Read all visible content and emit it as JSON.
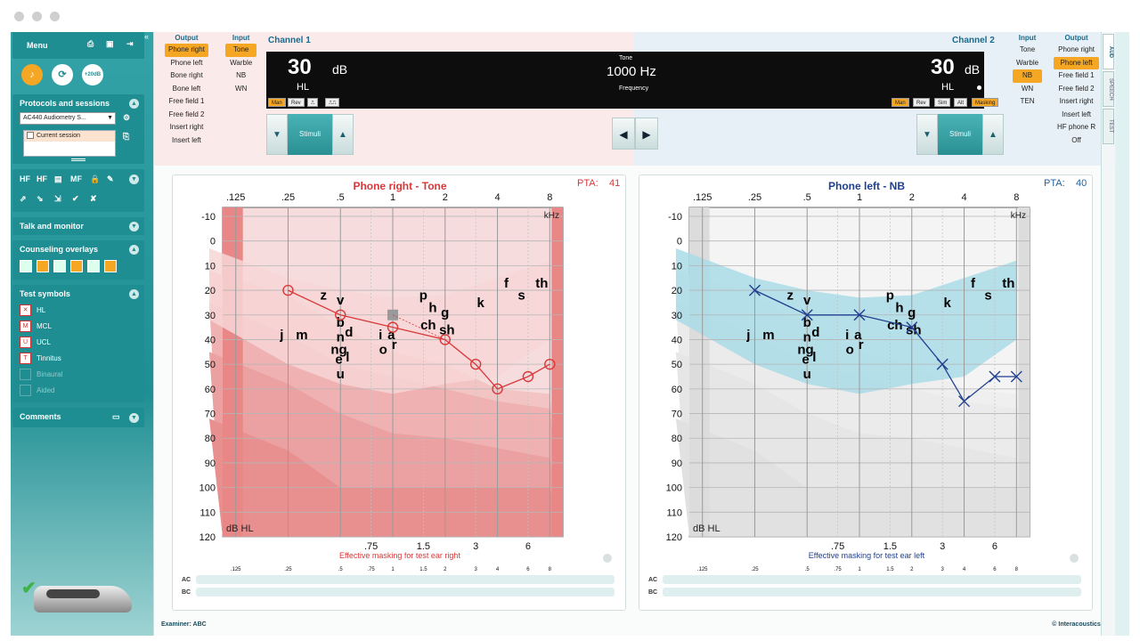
{
  "sidebar": {
    "menu_label": "Menu",
    "quick_buttons": [
      "♪",
      "⟳",
      "+20dB"
    ],
    "protocols": {
      "title": "Protocols and sessions",
      "protocol_value": "AC440 Audiometry S...",
      "current_session": "Current session"
    },
    "tools_row1": [
      "HF",
      "HF",
      "▤",
      "MF",
      "🔒",
      "✎"
    ],
    "talk_monitor": "Talk and monitor",
    "counseling": "Counseling overlays",
    "test_symbols": {
      "title": "Test symbols",
      "items": [
        "HL",
        "MCL",
        "UCL",
        "Tinnitus",
        "Binaural",
        "Aided"
      ]
    },
    "comments": "Comments"
  },
  "channel1": {
    "label": "Channel 1",
    "output_header": "Output",
    "input_header": "Input",
    "outputs": [
      "Phone right",
      "Phone left",
      "Bone right",
      "Bone left",
      "Free field 1",
      "Free field 2",
      "Insert right",
      "Insert left"
    ],
    "inputs": [
      "Tone",
      "Warble",
      "NB",
      "WN"
    ],
    "level": "30",
    "unit": "dB",
    "hl": "HL"
  },
  "channel2": {
    "label": "Channel 2",
    "input_header": "Input",
    "output_header": "Output",
    "inputs": [
      "Tone",
      "Warble",
      "NB",
      "WN",
      "TEN"
    ],
    "outputs": [
      "Phone right",
      "Phone left",
      "Free field 1",
      "Free field 2",
      "Insert right",
      "Insert left",
      "HF phone R",
      "Off"
    ],
    "level": "30",
    "unit": "dB",
    "hl": "HL"
  },
  "display": {
    "stim_type": "Tone",
    "frequency": "1000 Hz",
    "freq_label": "Frequency",
    "left_buttons": [
      "Man",
      "Rev"
    ],
    "right_buttons": [
      "Man",
      "Rev",
      "Sim",
      "Alt",
      "Masking"
    ]
  },
  "stimuli_label": "Stimuli",
  "audiogram_right": {
    "title": "Phone right - Tone",
    "pta_label": "PTA:",
    "pta_value": "41",
    "masking_label": "Effective masking for test ear right"
  },
  "audiogram_left": {
    "title": "Phone left - NB",
    "pta_label": "PTA:",
    "pta_value": "40",
    "masking_label": "Effective masking for test ear left"
  },
  "freq_top_labels": [
    ".125",
    ".25",
    ".5",
    "1",
    "2",
    "4",
    "8"
  ],
  "freq_mid_labels": [
    ".75",
    "1.5",
    "3",
    "6"
  ],
  "db_labels": [
    "-10",
    "0",
    "10",
    "20",
    "30",
    "40",
    "50",
    "60",
    "70",
    "80",
    "90",
    "100",
    "110",
    "120"
  ],
  "khz_label": "kHz",
  "dbhl_label": "dB HL",
  "ac_label": "AC",
  "bc_label": "BC",
  "bottom_freqs": [
    ".125",
    ".25",
    ".5",
    ".75",
    "1",
    "1.5",
    "2",
    "3",
    "4",
    "6",
    "8"
  ],
  "speech_sounds": [
    {
      "t": "z",
      "f": 0.4,
      "db": 22
    },
    {
      "t": "v",
      "f": 0.5,
      "db": 24
    },
    {
      "t": "p",
      "f": 1.5,
      "db": 22
    },
    {
      "t": "h",
      "f": 1.7,
      "db": 27
    },
    {
      "t": "g",
      "f": 2.0,
      "db": 29
    },
    {
      "t": "k",
      "f": 3.2,
      "db": 25
    },
    {
      "t": "f",
      "f": 4.5,
      "db": 17
    },
    {
      "t": "s",
      "f": 5.5,
      "db": 22
    },
    {
      "t": "th",
      "f": 7.2,
      "db": 17
    },
    {
      "t": "j",
      "f": 0.23,
      "db": 38
    },
    {
      "t": "m",
      "f": 0.3,
      "db": 38
    },
    {
      "t": "b",
      "f": 0.5,
      "db": 33
    },
    {
      "t": "d",
      "f": 0.56,
      "db": 37
    },
    {
      "t": "n",
      "f": 0.5,
      "db": 39
    },
    {
      "t": "ng",
      "f": 0.49,
      "db": 44
    },
    {
      "t": "e",
      "f": 0.49,
      "db": 48
    },
    {
      "t": "l",
      "f": 0.55,
      "db": 47
    },
    {
      "t": "u",
      "f": 0.5,
      "db": 54
    },
    {
      "t": "i",
      "f": 0.85,
      "db": 38
    },
    {
      "t": "a",
      "f": 0.98,
      "db": 38
    },
    {
      "t": "o",
      "f": 0.88,
      "db": 44
    },
    {
      "t": "r",
      "f": 1.02,
      "db": 42
    },
    {
      "t": "ch",
      "f": 1.6,
      "db": 34
    },
    {
      "t": "sh",
      "f": 2.05,
      "db": 36
    }
  ],
  "right_ear_points": [
    {
      "f": 0.25,
      "db": 20
    },
    {
      "f": 0.5,
      "db": 30
    },
    {
      "f": 1,
      "db": 35
    },
    {
      "f": 2,
      "db": 40
    },
    {
      "f": 3,
      "db": 50
    },
    {
      "f": 4,
      "db": 60
    },
    {
      "f": 6,
      "db": 55
    },
    {
      "f": 8,
      "db": 50
    }
  ],
  "right_ear_cursor": {
    "f": 1,
    "db": 30
  },
  "left_ear_points": [
    {
      "f": 0.25,
      "db": 20
    },
    {
      "f": 0.5,
      "db": 30
    },
    {
      "f": 1,
      "db": 30
    },
    {
      "f": 2,
      "db": 35
    },
    {
      "f": 3,
      "db": 50
    },
    {
      "f": 4,
      "db": 65
    },
    {
      "f": 6,
      "db": 55
    },
    {
      "f": 8,
      "db": 55
    }
  ],
  "footer": {
    "examiner": "Examiner: ABC",
    "copyright": "© Interacoustics®"
  },
  "right_tabs": [
    "AUD",
    "SPEECH",
    "TEST"
  ],
  "colors": {
    "right_ear": "#d9383a",
    "left_ear": "#1f3f8f",
    "accent": "#f5a623",
    "teal": "#2a9ea2"
  }
}
